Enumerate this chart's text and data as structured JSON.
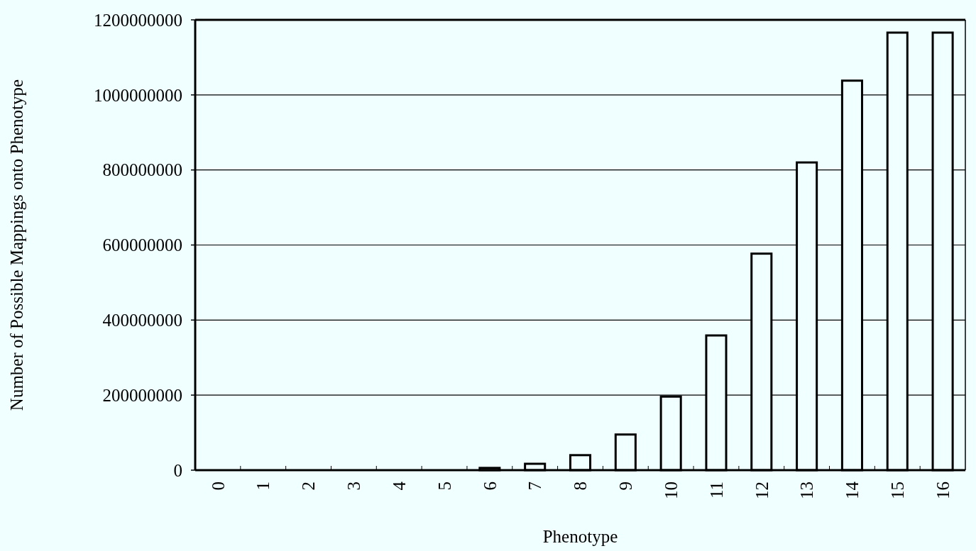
{
  "chart_data": {
    "type": "bar",
    "xlabel": "Phenotype",
    "ylabel": "Number of Possible Mappings onto Phenotype",
    "categories": [
      "0",
      "1",
      "2",
      "3",
      "4",
      "5",
      "6",
      "7",
      "8",
      "9",
      "10",
      "11",
      "12",
      "13",
      "14",
      "15",
      "16"
    ],
    "values": [
      0,
      0,
      0,
      0,
      0,
      0,
      6000000,
      17000000,
      40000000,
      95000000,
      196000000,
      359000000,
      577000000,
      820000000,
      1038000000,
      1166000000,
      1166000000
    ],
    "color": "#f0ffff",
    "ylim": [
      0,
      1200000000
    ],
    "yticks": [
      0,
      200000000,
      400000000,
      600000000,
      800000000,
      1000000000,
      1200000000
    ],
    "grid": "y"
  }
}
